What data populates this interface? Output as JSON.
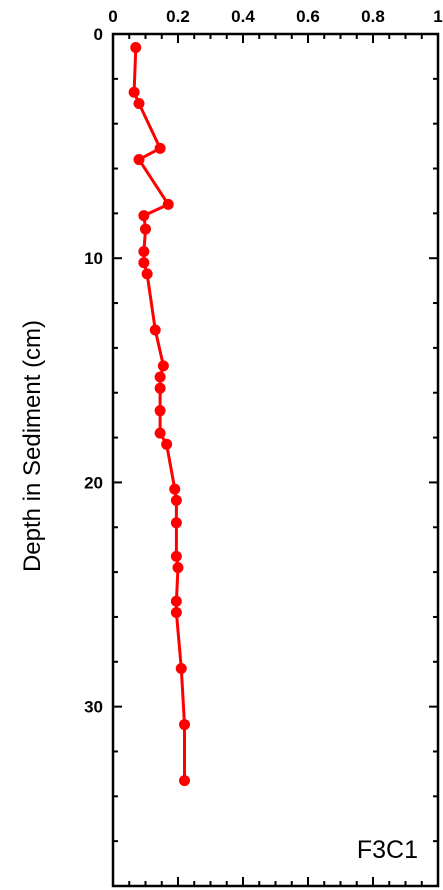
{
  "chart_data": {
    "type": "line",
    "title": "",
    "xlabel": "",
    "ylabel": "Depth in Sediment (cm)",
    "xlim": [
      0,
      1
    ],
    "ylim": [
      0,
      38
    ],
    "y_inverted": true,
    "x_axis_position": "top",
    "x_ticks": [
      0,
      0.2,
      0.4,
      0.6,
      0.8,
      1
    ],
    "x_tick_labels": [
      "0",
      "0.2",
      "0.4",
      "0.6",
      "0.8",
      "1"
    ],
    "y_ticks": [
      0,
      10,
      20,
      30
    ],
    "y_tick_labels": [
      "0",
      "10",
      "20",
      "30"
    ],
    "grid": false,
    "annotation": "F3C1",
    "series": [
      {
        "color": "#ff0000",
        "marker": "circle",
        "x": [
          0.07,
          0.065,
          0.08,
          0.145,
          0.08,
          0.17,
          0.095,
          0.1,
          0.095,
          0.095,
          0.105,
          0.13,
          0.155,
          0.145,
          0.145,
          0.145,
          0.145,
          0.165,
          0.19,
          0.195,
          0.195,
          0.195,
          0.2,
          0.195,
          0.195,
          0.21,
          0.22,
          0.22
        ],
        "y": [
          0.6,
          2.6,
          3.1,
          5.1,
          5.6,
          7.6,
          8.1,
          8.7,
          9.7,
          10.2,
          10.7,
          13.2,
          14.8,
          15.3,
          15.8,
          16.8,
          17.8,
          18.3,
          20.3,
          20.8,
          21.8,
          23.3,
          23.8,
          25.3,
          25.8,
          28.3,
          30.8,
          33.3
        ]
      }
    ]
  }
}
